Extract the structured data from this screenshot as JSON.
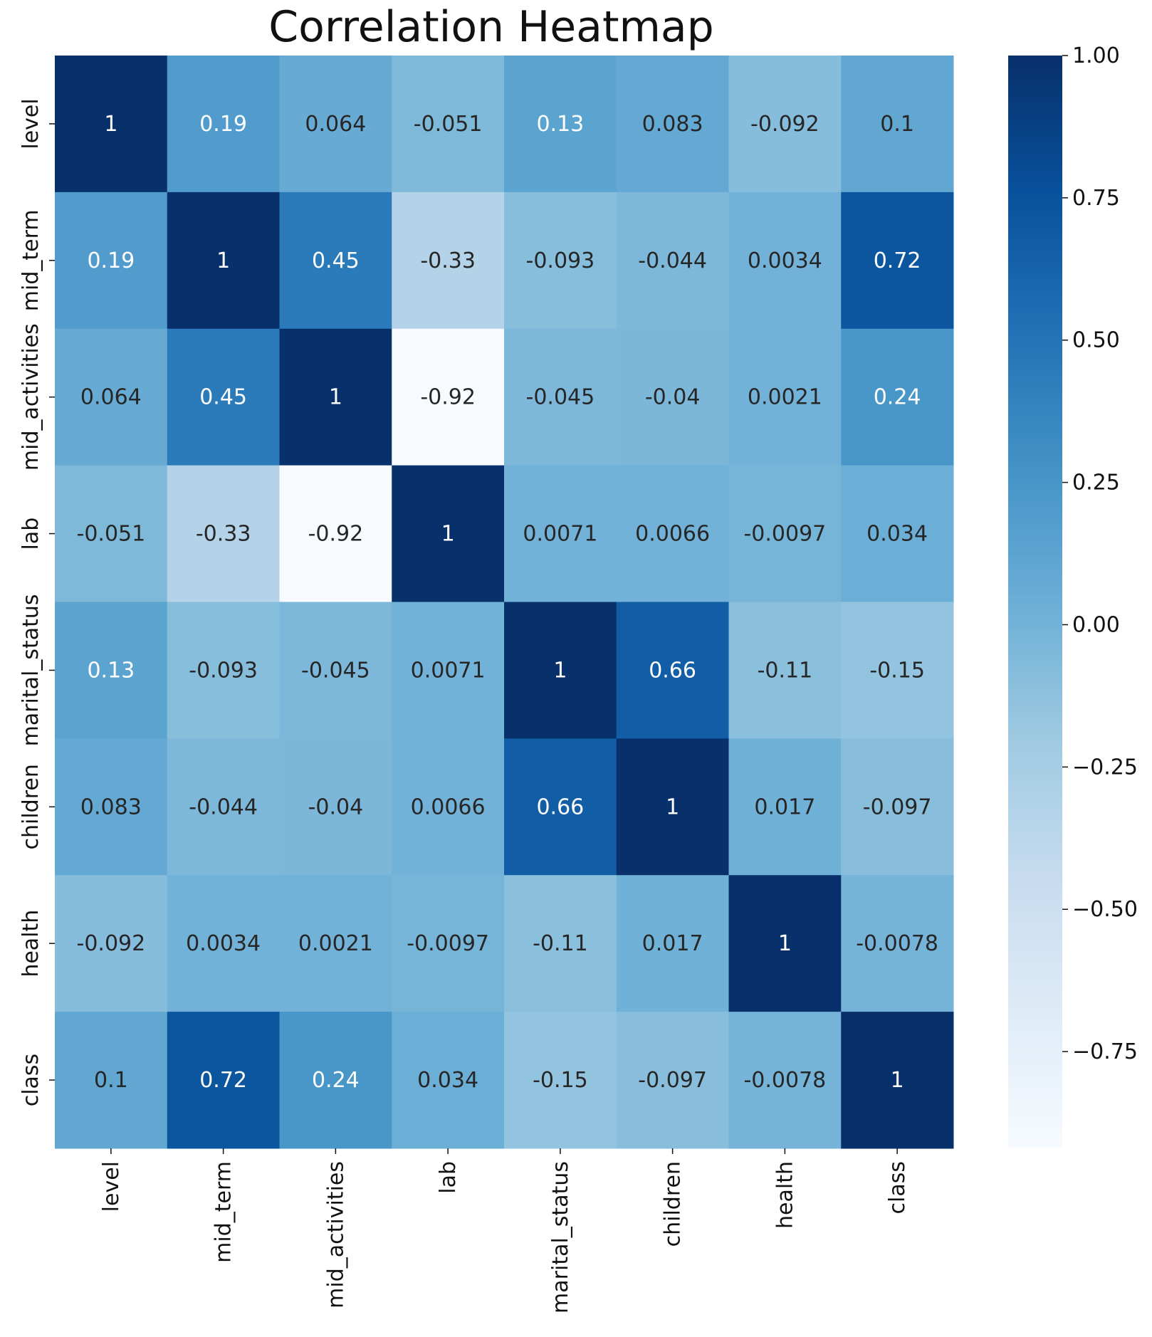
{
  "chart_data": {
    "type": "heatmap",
    "title": "Correlation Heatmap",
    "colormap": "Blues",
    "colors": {
      "low": "#f7fbff",
      "mid": "#6baed6",
      "high": "#08306b",
      "dark_text": "#262626",
      "light_text": "#ffffff"
    },
    "x_labels": [
      "level",
      "mid_term",
      "mid_activities",
      "lab",
      "marital_status",
      "children",
      "health",
      "class"
    ],
    "y_labels": [
      "level",
      "mid_term",
      "mid_activities",
      "lab",
      "marital_status",
      "children",
      "health",
      "class"
    ],
    "values": [
      [
        1,
        0.19,
        0.064,
        -0.051,
        0.13,
        0.083,
        -0.092,
        0.1
      ],
      [
        0.19,
        1,
        0.45,
        -0.33,
        -0.093,
        -0.044,
        0.0034,
        0.72
      ],
      [
        0.064,
        0.45,
        1,
        -0.92,
        -0.045,
        -0.04,
        0.0021,
        0.24
      ],
      [
        -0.051,
        -0.33,
        -0.92,
        1,
        0.0071,
        0.0066,
        -0.0097,
        0.034
      ],
      [
        0.13,
        -0.093,
        -0.045,
        0.0071,
        1,
        0.66,
        -0.11,
        -0.15
      ],
      [
        0.083,
        -0.044,
        -0.04,
        0.0066,
        0.66,
        1,
        0.017,
        -0.097
      ],
      [
        -0.092,
        0.0034,
        0.0021,
        -0.0097,
        -0.11,
        0.017,
        1,
        -0.0078
      ],
      [
        0.1,
        0.72,
        0.24,
        0.034,
        -0.15,
        -0.097,
        -0.0078,
        1
      ]
    ],
    "labels": [
      [
        "1",
        "0.19",
        "0.064",
        "-0.051",
        "0.13",
        "0.083",
        "-0.092",
        "0.1"
      ],
      [
        "0.19",
        "1",
        "0.45",
        "-0.33",
        "-0.093",
        "-0.044",
        "0.0034",
        "0.72"
      ],
      [
        "0.064",
        "0.45",
        "1",
        "-0.92",
        "-0.045",
        "-0.04",
        "0.0021",
        "0.24"
      ],
      [
        "-0.051",
        "-0.33",
        "-0.92",
        "1",
        "0.0071",
        "0.0066",
        "-0.0097",
        "0.034"
      ],
      [
        "0.13",
        "-0.093",
        "-0.045",
        "0.0071",
        "1",
        "0.66",
        "-0.11",
        "-0.15"
      ],
      [
        "0.083",
        "-0.044",
        "-0.04",
        "0.0066",
        "0.66",
        "1",
        "0.017",
        "-0.097"
      ],
      [
        "-0.092",
        "0.0034",
        "0.0021",
        "-0.0097",
        "-0.11",
        "0.017",
        "1",
        "-0.0078"
      ],
      [
        "0.1",
        "0.72",
        "0.24",
        "0.034",
        "-0.15",
        "-0.097",
        "-0.0078",
        "1"
      ]
    ],
    "colorbar": {
      "range": [
        -0.92,
        1.0
      ],
      "ticks": [
        1.0,
        0.75,
        0.5,
        0.25,
        0.0,
        -0.25,
        -0.5,
        -0.75
      ],
      "tick_labels": [
        "1.00",
        "0.75",
        "0.50",
        "0.25",
        "0.00",
        "−0.25",
        "−0.50",
        "−0.75"
      ]
    }
  }
}
